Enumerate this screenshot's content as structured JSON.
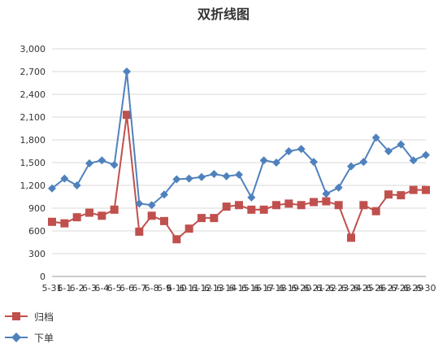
{
  "chart_data": {
    "type": "line",
    "title": "双折线图",
    "xlabel": "",
    "ylabel": "",
    "ylim": [
      0,
      3000
    ],
    "yticks": [
      0,
      300,
      600,
      900,
      1200,
      1500,
      1800,
      2100,
      2400,
      2700,
      3000
    ],
    "ytick_labels": [
      "0",
      "300",
      "600",
      "900",
      "1,200",
      "1,500",
      "1,800",
      "2,100",
      "2,400",
      "2,700",
      "3,000"
    ],
    "categories": [
      "5-31",
      "6-1",
      "6-2",
      "6-3",
      "6-4",
      "6-5",
      "6-6",
      "6-7",
      "6-8",
      "6-9",
      "6-10",
      "6-11",
      "6-12",
      "6-13",
      "6-14",
      "6-15",
      "6-16",
      "6-17",
      "6-18",
      "6-19",
      "6-20",
      "6-21",
      "6-22",
      "6-23",
      "6-24",
      "6-25",
      "6-26",
      "6-27",
      "6-28",
      "6-29",
      "6-30"
    ],
    "x_tick_labels": [
      "5-31",
      "6-1",
      "6-2",
      "6-3",
      "6-4",
      "6-5",
      "6-6",
      "6-7",
      "6-8",
      "6-9",
      "6-10",
      "6-11",
      "6-12",
      "6-13",
      "6-14",
      "6-15",
      "6-16",
      "6-17",
      "6-18",
      "6-19",
      "6-20",
      "6-21",
      "6-22",
      "6-23",
      "6-24",
      "6-25",
      "6-26",
      "6-27",
      "6-28",
      "6-29",
      "6-30"
    ],
    "grid": true,
    "legend_position": "bottom-left",
    "series": [
      {
        "name": "归档",
        "color": "#c0504d",
        "marker": "square",
        "values": [
          720,
          700,
          780,
          840,
          800,
          880,
          2130,
          590,
          800,
          730,
          490,
          630,
          770,
          770,
          920,
          940,
          880,
          880,
          940,
          960,
          940,
          980,
          990,
          940,
          510,
          940,
          860,
          1080,
          1070,
          1140,
          1140
        ]
      },
      {
        "name": "下单",
        "color": "#4f81bd",
        "marker": "diamond",
        "values": [
          1160,
          1290,
          1200,
          1490,
          1530,
          1470,
          2700,
          960,
          940,
          1080,
          1280,
          1290,
          1310,
          1350,
          1320,
          1340,
          1040,
          1530,
          1500,
          1650,
          1680,
          1510,
          1090,
          1170,
          1450,
          1510,
          1830,
          1650,
          1740,
          1530,
          1600
        ]
      }
    ]
  }
}
